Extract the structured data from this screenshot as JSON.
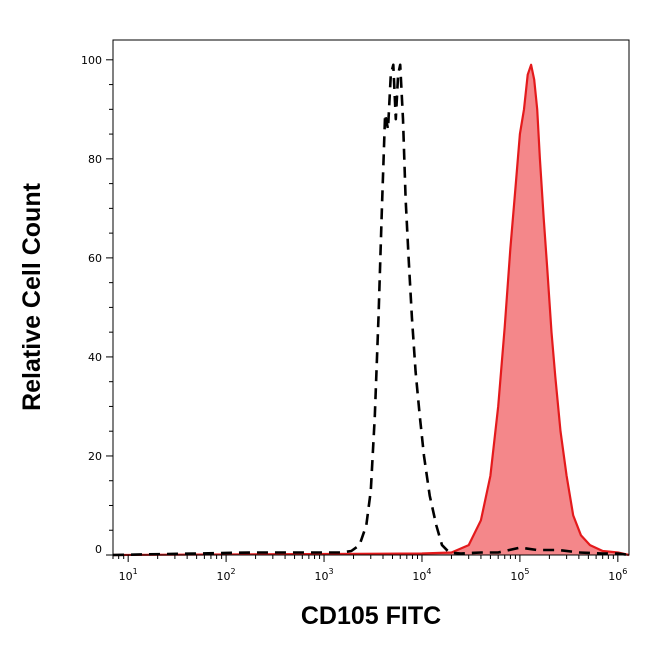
{
  "chart_data": {
    "type": "area",
    "xlabel": "CD105 FITC",
    "ylabel": "Relative Cell Count",
    "x_scale": "log",
    "xlim": [
      7,
      1300000
    ],
    "ylim": [
      0,
      104
    ],
    "x_ticks": [
      {
        "value": 10,
        "base": "10",
        "exp": "1"
      },
      {
        "value": 100,
        "base": "10",
        "exp": "2"
      },
      {
        "value": 1000,
        "base": "10",
        "exp": "3"
      },
      {
        "value": 10000,
        "base": "10",
        "exp": "4"
      },
      {
        "value": 100000,
        "base": "10",
        "exp": "5"
      },
      {
        "value": 1000000,
        "base": "10",
        "exp": "6"
      }
    ],
    "y_ticks": [
      {
        "value": 0,
        "label": "0"
      },
      {
        "value": 20,
        "label": "20"
      },
      {
        "value": 40,
        "label": "40"
      },
      {
        "value": 60,
        "label": "60"
      },
      {
        "value": 80,
        "label": "80"
      },
      {
        "value": 100,
        "label": "100"
      }
    ],
    "series": [
      {
        "style": "dashed",
        "color": "#000000",
        "fill": "none",
        "x": [
          7,
          180,
          450,
          900,
          1500,
          1900,
          2300,
          2700,
          3000,
          3300,
          3600,
          3900,
          4200,
          4500,
          4800,
          5100,
          5400,
          5700,
          6000,
          6400,
          6800,
          7300,
          7900,
          8600,
          9500,
          10500,
          12000,
          14000,
          16000,
          19000,
          25000,
          40000,
          60000,
          100000,
          150000,
          250000,
          400000,
          700000,
          1000000,
          1300000
        ],
        "y": [
          0,
          0.5,
          0.5,
          0.5,
          0.5,
          0.8,
          2,
          6,
          13,
          28,
          48,
          70,
          89,
          86,
          97,
          99,
          88,
          97,
          99,
          88,
          72,
          60,
          48,
          37,
          28,
          20,
          12,
          6,
          2,
          0.5,
          0.3,
          0.5,
          0.5,
          1.5,
          1,
          1,
          0.5,
          0.3,
          0.3,
          0
        ]
      },
      {
        "style": "solid",
        "color": "#e41a1c",
        "fill": "#f4878a",
        "x": [
          7,
          10000,
          20000,
          30000,
          40000,
          50000,
          60000,
          70000,
          80000,
          90000,
          100000,
          110000,
          120000,
          130000,
          140000,
          150000,
          160000,
          175000,
          190000,
          210000,
          230000,
          260000,
          300000,
          350000,
          420000,
          520000,
          700000,
          1000000,
          1300000
        ],
        "y": [
          0,
          0.3,
          0.5,
          2,
          7,
          16,
          30,
          46,
          62,
          74,
          85,
          90,
          97,
          99,
          96,
          90,
          80,
          68,
          58,
          45,
          36,
          25,
          16,
          8,
          4,
          2,
          0.8,
          0.5,
          0
        ]
      }
    ]
  }
}
